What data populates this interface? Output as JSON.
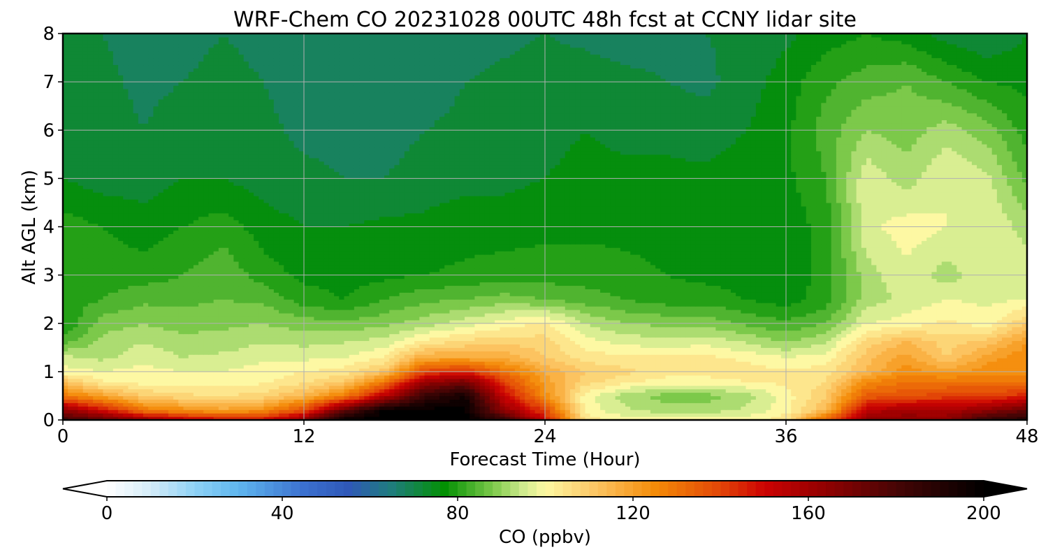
{
  "chart_data": {
    "type": "heatmap",
    "title": "WRF-Chem CO  20231028 00UTC 48h fcst at CCNY lidar site",
    "xlabel": "Forecast Time (Hour)",
    "ylabel": "Alt AGL (km)",
    "xlim": [
      0,
      48
    ],
    "ylim": [
      0,
      8
    ],
    "xticks": [
      "0",
      "12",
      "24",
      "36",
      "48"
    ],
    "yticks": [
      "0",
      "1",
      "2",
      "3",
      "4",
      "5",
      "6",
      "7",
      "8"
    ],
    "grid": true,
    "colorbar": {
      "label": "CO  (ppbv)",
      "range": [
        0,
        200
      ],
      "ticks": [
        "0",
        "40",
        "80",
        "120",
        "160",
        "200"
      ],
      "extend": "both",
      "orientation": "horizontal",
      "colors": [
        {
          "value": 0,
          "color": "#ffffff"
        },
        {
          "value": 10,
          "color": "#d4ecf8"
        },
        {
          "value": 20,
          "color": "#8fd2f6"
        },
        {
          "value": 30,
          "color": "#5fb6ee"
        },
        {
          "value": 45,
          "color": "#3b70cf"
        },
        {
          "value": 55,
          "color": "#2f58b8"
        },
        {
          "value": 65,
          "color": "#1f7d7c"
        },
        {
          "value": 77,
          "color": "#039003"
        },
        {
          "value": 88,
          "color": "#7cc94a"
        },
        {
          "value": 95,
          "color": "#d0eb8e"
        },
        {
          "value": 100,
          "color": "#fdf8a3"
        },
        {
          "value": 112,
          "color": "#fcc360"
        },
        {
          "value": 125,
          "color": "#f48b08"
        },
        {
          "value": 140,
          "color": "#e24507"
        },
        {
          "value": 150,
          "color": "#cc0202"
        },
        {
          "value": 165,
          "color": "#8c0101"
        },
        {
          "value": 180,
          "color": "#470505"
        },
        {
          "value": 200,
          "color": "#000000"
        }
      ]
    },
    "x_hours": [
      0,
      2,
      4,
      6,
      8,
      10,
      12,
      14,
      16,
      18,
      20,
      22,
      24,
      26,
      28,
      30,
      32,
      34,
      36,
      38,
      40,
      42,
      44,
      46,
      48
    ],
    "z_km": [
      0.0,
      0.2,
      0.5,
      0.8,
      1.0,
      1.3,
      1.6,
      2.0,
      2.5,
      3.0,
      4.0,
      5.0,
      6.0,
      7.0,
      8.0
    ],
    "values": [
      [
        182,
        175,
        165,
        155,
        150,
        150,
        165,
        200,
        200,
        200,
        200,
        185,
        150,
        105,
        100,
        100,
        100,
        100,
        105,
        135,
        165,
        165,
        165,
        185,
        190
      ],
      [
        165,
        150,
        130,
        125,
        120,
        125,
        140,
        175,
        200,
        200,
        200,
        165,
        140,
        100,
        95,
        92,
        92,
        95,
        100,
        115,
        155,
        160,
        158,
        165,
        175
      ],
      [
        130,
        120,
        110,
        107,
        106,
        108,
        115,
        128,
        155,
        185,
        195,
        150,
        125,
        100,
        92,
        88,
        88,
        92,
        100,
        110,
        135,
        138,
        140,
        140,
        145
      ],
      [
        112,
        102,
        100,
        100,
        100,
        101,
        105,
        110,
        128,
        160,
        170,
        140,
        120,
        108,
        103,
        100,
        100,
        102,
        103,
        106,
        125,
        130,
        130,
        130,
        130
      ],
      [
        100,
        98,
        100,
        98,
        98,
        100,
        102,
        104,
        112,
        140,
        145,
        130,
        118,
        110,
        107,
        104,
        104,
        104,
        103,
        104,
        115,
        125,
        120,
        125,
        125
      ],
      [
        95,
        93,
        96,
        94,
        95,
        97,
        97,
        98,
        102,
        118,
        118,
        117,
        110,
        104,
        103,
        103,
        103,
        101,
        98,
        100,
        112,
        120,
        110,
        120,
        125
      ],
      [
        85,
        92,
        94,
        92,
        92,
        94,
        93,
        94,
        96,
        104,
        108,
        109,
        108,
        100,
        97,
        96,
        97,
        94,
        90,
        94,
        108,
        115,
        108,
        112,
        122
      ],
      [
        78,
        88,
        90,
        88,
        89,
        90,
        88,
        87,
        89,
        92,
        96,
        100,
        103,
        94,
        90,
        89,
        89,
        85,
        83,
        86,
        98,
        100,
        103,
        100,
        110
      ],
      [
        80,
        82,
        85,
        85,
        86,
        85,
        80,
        78,
        82,
        85,
        86,
        88,
        86,
        84,
        82,
        80,
        80,
        78,
        76,
        80,
        92,
        95,
        98,
        97,
        98
      ],
      [
        82,
        80,
        80,
        82,
        85,
        80,
        77,
        76,
        77,
        78,
        79,
        80,
        80,
        80,
        79,
        78,
        77,
        76,
        75,
        80,
        92,
        97,
        92,
        97,
        97
      ],
      [
        80,
        78,
        76,
        78,
        80,
        76,
        74,
        74,
        75,
        75,
        76,
        76,
        77,
        77,
        77,
        77,
        76,
        76,
        75,
        80,
        97,
        100,
        98,
        98,
        92
      ],
      [
        74,
        72,
        72,
        74,
        74,
        72,
        71,
        70,
        70,
        72,
        73,
        73,
        74,
        75,
        75,
        75,
        75,
        76,
        77,
        82,
        97,
        92,
        98,
        95,
        85
      ],
      [
        73,
        72,
        70,
        72,
        72,
        71,
        69,
        69,
        68,
        70,
        71,
        72,
        73,
        74,
        73,
        73,
        72,
        74,
        77,
        84,
        90,
        88,
        92,
        88,
        80
      ],
      [
        73,
        71,
        69,
        70,
        71,
        70,
        68,
        67,
        67,
        68,
        70,
        71,
        72,
        72,
        71,
        70,
        69,
        72,
        76,
        81,
        84,
        86,
        82,
        78,
        77
      ],
      [
        71,
        70,
        68,
        69,
        70,
        69,
        67,
        67,
        67,
        66,
        68,
        69,
        70,
        69,
        68,
        69,
        70,
        71,
        73,
        76,
        78,
        76,
        72,
        70,
        74
      ]
    ]
  }
}
